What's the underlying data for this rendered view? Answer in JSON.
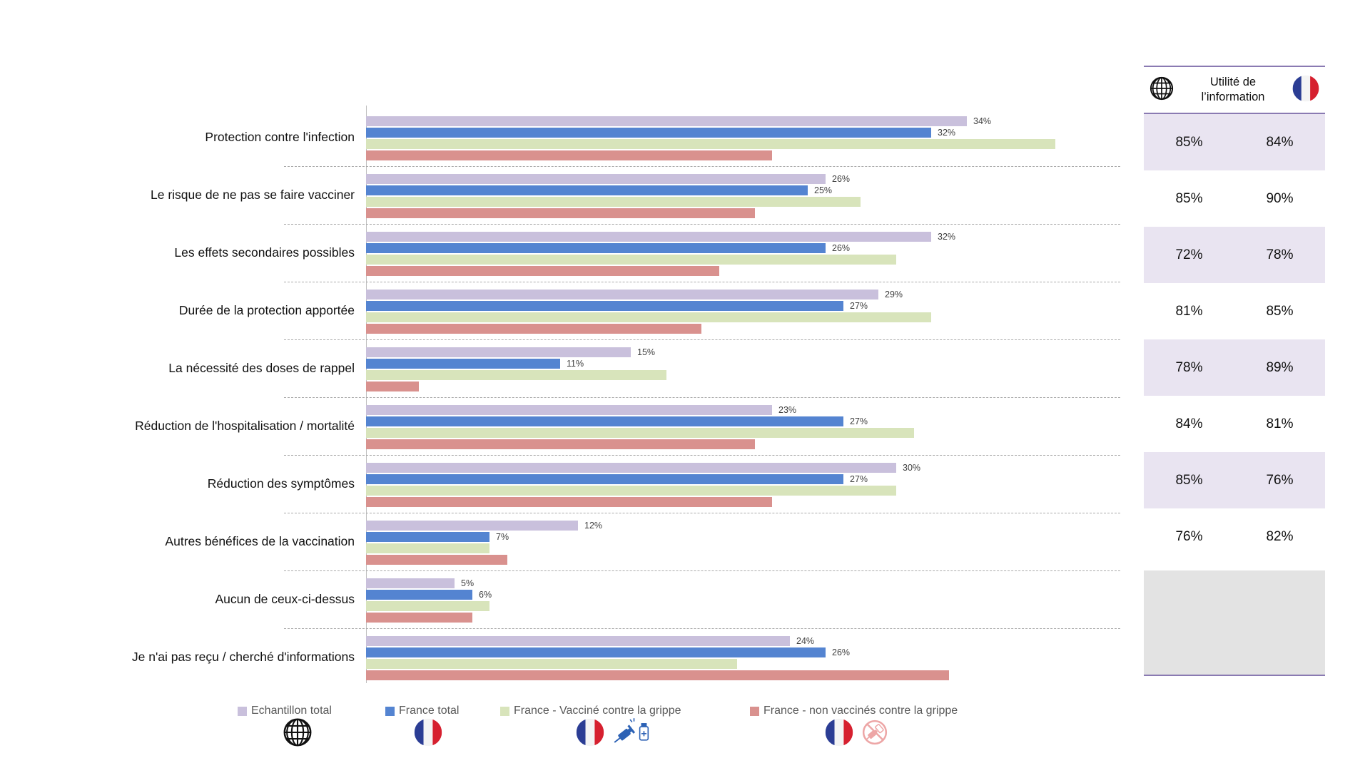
{
  "chart_data": {
    "type": "bar",
    "orientation": "horizontal",
    "xlim": [
      0,
      40
    ],
    "unit": "%",
    "grid": "dashed-horizontal-separators",
    "legend_position": "bottom",
    "categories": [
      "Protection contre l'infection",
      "Le risque de ne pas se faire vacciner",
      "Les effets secondaires possibles",
      "Durée de la protection apportée",
      "La nécessité des doses de rappel",
      "Réduction de l'hospitalisation / mortalité",
      "Réduction des symptômes",
      "Autres bénéfices de la vaccination",
      "Aucun de ceux-ci-dessus",
      "Je n'ai pas reçu / cherché d'informations"
    ],
    "series": [
      {
        "name": "Echantillon total",
        "color": "#c9c0dc",
        "data_labels_shown": true,
        "values": [
          34,
          26,
          32,
          29,
          15,
          23,
          30,
          12,
          5,
          24
        ]
      },
      {
        "name": "France total",
        "color": "#5484d1",
        "data_labels_shown": true,
        "values": [
          32,
          25,
          26,
          27,
          11,
          27,
          27,
          7,
          6,
          26
        ]
      },
      {
        "name": "France - Vacciné contre la grippe",
        "color": "#d8e4bb",
        "data_labels_shown": false,
        "values": [
          39,
          28,
          30,
          32,
          17,
          31,
          30,
          7,
          7,
          21
        ]
      },
      {
        "name": "France - non vaccinés contre la grippe",
        "color": "#d9918e",
        "data_labels_shown": false,
        "values": [
          23,
          22,
          20,
          19,
          3,
          22,
          23,
          8,
          6,
          33
        ]
      }
    ]
  },
  "side_table": {
    "title_line1": "Utilité de",
    "title_line2": "l’information",
    "col1_icon": "globe",
    "col2_icon": "france-flag",
    "rows": [
      {
        "global": "85%",
        "france": "84%",
        "shaded": true
      },
      {
        "global": "85%",
        "france": "90%",
        "shaded": false
      },
      {
        "global": "72%",
        "france": "78%",
        "shaded": true
      },
      {
        "global": "81%",
        "france": "85%",
        "shaded": false
      },
      {
        "global": "78%",
        "france": "89%",
        "shaded": true
      },
      {
        "global": "84%",
        "france": "81%",
        "shaded": false
      },
      {
        "global": "85%",
        "france": "76%",
        "shaded": true
      },
      {
        "global": "76%",
        "france": "82%",
        "shaded": false
      }
    ]
  },
  "footer_icons": [
    {
      "icon": "globe",
      "for_series": "Echantillon total"
    },
    {
      "icon": "france-flag",
      "for_series": "France total"
    },
    {
      "icon": "france-flag-plus-syringe",
      "for_series": "France - Vacciné contre la grippe"
    },
    {
      "icon": "france-flag-no-syringe",
      "for_series": "France - non vaccinés contre la grippe"
    }
  ],
  "colors": {
    "echantillon_total": "#c9c0dc",
    "france_total": "#5484d1",
    "vaccines": "#d8e4bb",
    "non_vaccines": "#d9918e",
    "table_shaded_row": "#e9e4f1",
    "table_empty_cell": "#e3e3e3",
    "table_border": "#8a7ab2",
    "flag_blue": "#2b3d94",
    "flag_red": "#d6202f",
    "syringe_blue": "#2d62b5",
    "no_syringe_pink": "#eda6a6"
  }
}
